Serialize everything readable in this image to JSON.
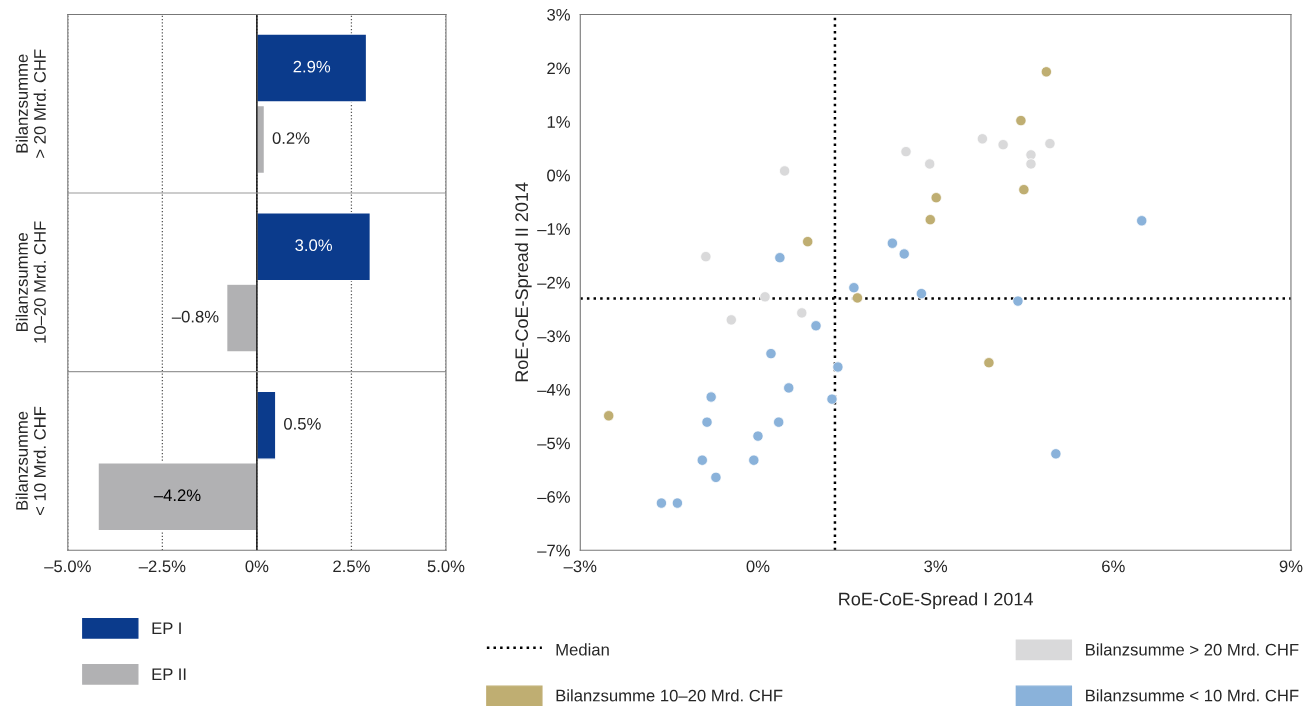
{
  "chart_data": [
    {
      "type": "bar",
      "orientation": "horizontal",
      "categories": [
        "Bilanzsumme\n> 20 Mrd. CHF",
        "Bilanzsumme\n10–20 Mrd. CHF",
        "Bilanzsumme\n< 10 Mrd. CHF"
      ],
      "series": [
        {
          "name": "EP I",
          "color": "#0b3b8c",
          "values": [
            2.9,
            3.0,
            0.5
          ],
          "value_labels": [
            "2.9%",
            "3.0%",
            "0.5%"
          ]
        },
        {
          "name": "EP II",
          "color": "#b1b1b3",
          "values": [
            0.2,
            -0.8,
            -4.2
          ],
          "value_labels": [
            "0.2%",
            "–0.8%",
            "–4.2%"
          ]
        }
      ],
      "xlim": [
        -5,
        5
      ],
      "xticks": [
        {
          "value": -5,
          "label": "–5.0%"
        },
        {
          "value": -2.5,
          "label": "–2.5%"
        },
        {
          "value": 0,
          "label": "0%"
        },
        {
          "value": 2.5,
          "label": "2.5%"
        },
        {
          "value": 5,
          "label": "5.0%"
        }
      ],
      "grid": "x",
      "legend": "bottom"
    },
    {
      "type": "scatter",
      "xlabel": "RoE-CoE-Spread I 2014",
      "ylabel": "RoE-CoE-Spread II 2014",
      "series": [
        {
          "name": "Bilanzsumme > 20 Mrd. CHF",
          "color": "#d9d9da",
          "x": [
            0.45,
            -0.88,
            2.5,
            2.9,
            3.79,
            4.14,
            4.61,
            4.61,
            4.93,
            0.12,
            -0.45,
            0.74
          ],
          "values": [
            0.08,
            -1.52,
            0.44,
            0.21,
            0.68,
            0.57,
            0.38,
            0.21,
            0.59,
            -2.27,
            -2.7,
            -2.57
          ]
        },
        {
          "name": "Bilanzsumme 10–20 Mrd. CHF",
          "color": "#bfae72",
          "x": [
            4.87,
            4.44,
            4.49,
            3.01,
            2.91,
            0.84,
            1.68,
            -2.52,
            3.9
          ],
          "values": [
            1.93,
            1.02,
            -0.27,
            -0.42,
            -0.83,
            -1.24,
            -2.29,
            -4.49,
            -3.5
          ]
        },
        {
          "name": "Bilanzsumme < 10 Mrd. CHF",
          "color": "#8ab2da",
          "x": [
            6.48,
            2.27,
            2.47,
            0.37,
            1.62,
            2.76,
            4.39,
            0.98,
            0.22,
            1.35,
            -0.79,
            0.52,
            1.25,
            -0.86,
            0.35,
            0.0,
            -0.94,
            -0.07,
            -0.71,
            -1.63,
            -1.36,
            5.03
          ],
          "values": [
            -0.85,
            -1.27,
            -1.47,
            -1.54,
            -2.1,
            -2.21,
            -2.35,
            -2.81,
            -3.33,
            -3.58,
            -4.14,
            -3.97,
            -4.18,
            -4.61,
            -4.61,
            -4.87,
            -5.32,
            -5.32,
            -5.64,
            -6.12,
            -6.12,
            -5.2
          ]
        }
      ],
      "ref_lines": [
        {
          "axis": "x",
          "value": 1.3,
          "label": "Median",
          "color": "#000000",
          "line_style": "dotted"
        },
        {
          "axis": "y",
          "value": -2.3,
          "color": "#000000",
          "line_style": "dotted"
        }
      ],
      "xlim": [
        -3,
        9
      ],
      "xticks": [
        {
          "value": -3,
          "label": "–3%"
        },
        {
          "value": 0,
          "label": "0%"
        },
        {
          "value": 3,
          "label": "3%"
        },
        {
          "value": 6,
          "label": "6%"
        },
        {
          "value": 9,
          "label": "9%"
        }
      ],
      "ylim": [
        -7,
        3
      ],
      "yticks": [
        {
          "value": -7,
          "label": "–7%"
        },
        {
          "value": -6,
          "label": "–6%"
        },
        {
          "value": -5,
          "label": "–5%"
        },
        {
          "value": -4,
          "label": "–4%"
        },
        {
          "value": -3,
          "label": "–3%"
        },
        {
          "value": -2,
          "label": "–2%"
        },
        {
          "value": -1,
          "label": "–1%"
        },
        {
          "value": 0,
          "label": "0%"
        },
        {
          "value": 1,
          "label": "1%"
        },
        {
          "value": 2,
          "label": "2%"
        },
        {
          "value": 3,
          "label": "3%"
        }
      ],
      "grid": false,
      "marker": "circle",
      "legend": "bottom"
    }
  ]
}
